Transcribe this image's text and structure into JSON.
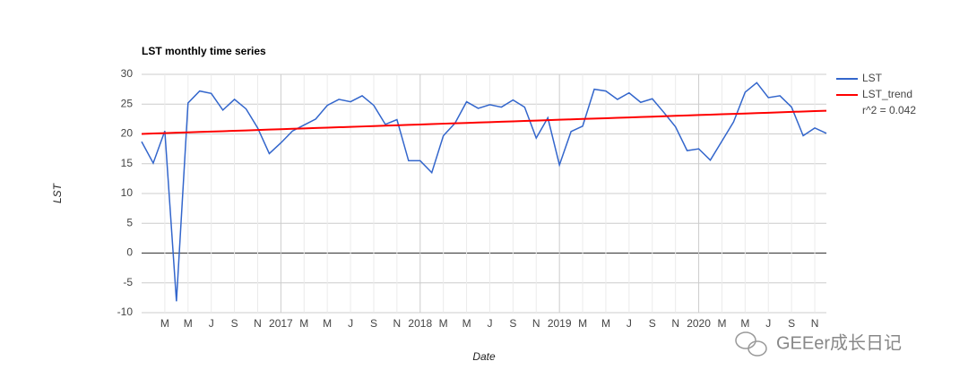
{
  "chart_data": {
    "type": "line",
    "title": "LST monthly time series",
    "x_label": "Date",
    "y_label": "LST",
    "x": [
      "2016-01",
      "2016-02",
      "2016-03",
      "2016-04",
      "2016-05",
      "2016-06",
      "2016-07",
      "2016-08",
      "2016-09",
      "2016-10",
      "2016-11",
      "2016-12",
      "2017-01",
      "2017-02",
      "2017-03",
      "2017-04",
      "2017-05",
      "2017-06",
      "2017-07",
      "2017-08",
      "2017-09",
      "2017-10",
      "2017-11",
      "2017-12",
      "2018-01",
      "2018-02",
      "2018-03",
      "2018-04",
      "2018-05",
      "2018-06",
      "2018-07",
      "2018-08",
      "2018-09",
      "2018-10",
      "2018-11",
      "2018-12",
      "2019-01",
      "2019-02",
      "2019-03",
      "2019-04",
      "2019-05",
      "2019-06",
      "2019-07",
      "2019-08",
      "2019-09",
      "2019-10",
      "2019-11",
      "2019-12",
      "2020-01",
      "2020-02",
      "2020-03",
      "2020-04",
      "2020-05",
      "2020-06",
      "2020-07",
      "2020-08",
      "2020-09",
      "2020-10",
      "2020-11",
      "2020-12"
    ],
    "series": [
      {
        "name": "LST",
        "color": "#3366cc",
        "values": [
          18.7,
          15.1,
          20.5,
          -8.1,
          25.2,
          27.2,
          26.8,
          24.0,
          25.8,
          24.2,
          21.0,
          16.7,
          18.5,
          20.5,
          21.5,
          22.5,
          24.8,
          25.8,
          25.4,
          26.4,
          24.8,
          21.6,
          22.4,
          15.5,
          15.5,
          13.5,
          19.7,
          21.8,
          25.4,
          24.3,
          24.9,
          24.5,
          25.7,
          24.5,
          19.3,
          22.7,
          14.8,
          20.4,
          21.3,
          27.5,
          27.2,
          25.8,
          26.9,
          25.3,
          25.9,
          23.6,
          21.2,
          17.2,
          17.5,
          15.6,
          18.8,
          22.0,
          27.0,
          28.6,
          26.1,
          26.4,
          24.5,
          19.7,
          21.0,
          20.1
        ]
      },
      {
        "name": "LST_trend",
        "color": "#ff0000",
        "note": "r^2 = 0.042",
        "values": [
          20.0,
          20.07,
          20.13,
          20.2,
          20.26,
          20.33,
          20.4,
          20.46,
          20.53,
          20.59,
          20.66,
          20.73,
          20.79,
          20.86,
          20.92,
          20.99,
          21.06,
          21.12,
          21.19,
          21.25,
          21.32,
          21.39,
          21.45,
          21.52,
          21.58,
          21.65,
          21.72,
          21.78,
          21.85,
          21.91,
          21.98,
          22.05,
          22.11,
          22.18,
          22.24,
          22.31,
          22.38,
          22.44,
          22.51,
          22.57,
          22.64,
          22.71,
          22.77,
          22.84,
          22.9,
          22.97,
          23.04,
          23.1,
          23.17,
          23.23,
          23.3,
          23.37,
          23.43,
          23.5,
          23.56,
          23.63,
          23.7,
          23.76,
          23.83,
          23.89
        ]
      }
    ],
    "xlim": [
      "2016-01",
      "2020-12"
    ],
    "xticks": [
      {
        "value": "2016-03",
        "label": "M"
      },
      {
        "value": "2016-05",
        "label": "M"
      },
      {
        "value": "2016-07",
        "label": "J"
      },
      {
        "value": "2016-09",
        "label": "S"
      },
      {
        "value": "2016-11",
        "label": "N"
      },
      {
        "value": "2017-01",
        "label": "2017"
      },
      {
        "value": "2017-03",
        "label": "M"
      },
      {
        "value": "2017-05",
        "label": "M"
      },
      {
        "value": "2017-07",
        "label": "J"
      },
      {
        "value": "2017-09",
        "label": "S"
      },
      {
        "value": "2017-11",
        "label": "N"
      },
      {
        "value": "2018-01",
        "label": "2018"
      },
      {
        "value": "2018-03",
        "label": "M"
      },
      {
        "value": "2018-05",
        "label": "M"
      },
      {
        "value": "2018-07",
        "label": "J"
      },
      {
        "value": "2018-09",
        "label": "S"
      },
      {
        "value": "2018-11",
        "label": "N"
      },
      {
        "value": "2019-01",
        "label": "2019"
      },
      {
        "value": "2019-03",
        "label": "M"
      },
      {
        "value": "2019-05",
        "label": "M"
      },
      {
        "value": "2019-07",
        "label": "J"
      },
      {
        "value": "2019-09",
        "label": "S"
      },
      {
        "value": "2019-11",
        "label": "N"
      },
      {
        "value": "2020-01",
        "label": "2020"
      },
      {
        "value": "2020-03",
        "label": "M"
      },
      {
        "value": "2020-05",
        "label": "M"
      },
      {
        "value": "2020-07",
        "label": "J"
      },
      {
        "value": "2020-09",
        "label": "S"
      },
      {
        "value": "2020-11",
        "label": "N"
      }
    ],
    "ylim": [
      -10,
      30
    ],
    "yticks": [
      -10,
      -5,
      0,
      5,
      10,
      15,
      20,
      25,
      30
    ],
    "grid": true,
    "legend": "right",
    "watermark": "GEEer成长日记"
  }
}
